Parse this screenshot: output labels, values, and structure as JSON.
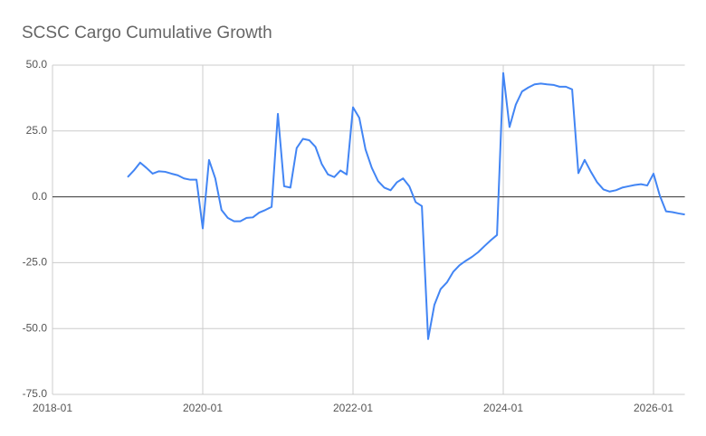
{
  "chart_data": {
    "type": "line",
    "title": "SCSC Cargo Cumulative Growth",
    "x": [
      "2019-01",
      "2019-02",
      "2019-03",
      "2019-04",
      "2019-05",
      "2019-06",
      "2019-07",
      "2019-08",
      "2019-09",
      "2019-10",
      "2019-11",
      "2019-12",
      "2020-01",
      "2020-02",
      "2020-03",
      "2020-04",
      "2020-05",
      "2020-06",
      "2020-07",
      "2020-08",
      "2020-09",
      "2020-10",
      "2020-11",
      "2020-12",
      "2021-01",
      "2021-02",
      "2021-03",
      "2021-04",
      "2021-05",
      "2021-06",
      "2021-07",
      "2021-08",
      "2021-09",
      "2021-10",
      "2021-11",
      "2021-12",
      "2022-01",
      "2022-02",
      "2022-03",
      "2022-04",
      "2022-05",
      "2022-06",
      "2022-07",
      "2022-08",
      "2022-09",
      "2022-10",
      "2022-11",
      "2022-12",
      "2023-01",
      "2023-02",
      "2023-03",
      "2023-04",
      "2023-05",
      "2023-06",
      "2023-07",
      "2023-08",
      "2023-09",
      "2023-10",
      "2023-11",
      "2023-12",
      "2024-01",
      "2024-02",
      "2024-03",
      "2024-04",
      "2024-05",
      "2024-06",
      "2024-07",
      "2024-08",
      "2024-09",
      "2024-10",
      "2024-11",
      "2024-12",
      "2025-01",
      "2025-02",
      "2025-03",
      "2025-04",
      "2025-05",
      "2025-06",
      "2025-07",
      "2025-08",
      "2025-09",
      "2025-10",
      "2025-11",
      "2025-12",
      "2026-01",
      "2026-02",
      "2026-03",
      "2026-04",
      "2026-05",
      "2026-06"
    ],
    "values": [
      7.5,
      10,
      13,
      11,
      8.8,
      9.7,
      9.5,
      8.8,
      8.2,
      7,
      6.5,
      6.5,
      -12,
      14,
      7,
      -5,
      -8,
      -9.3,
      -9.3,
      -8,
      -7.8,
      -6,
      -5,
      -3.8,
      31.5,
      4,
      3.5,
      18.5,
      22,
      21.5,
      19,
      12.5,
      8.5,
      7.5,
      10,
      8.5,
      34,
      30,
      18,
      11,
      6,
      3.5,
      2.5,
      5.5,
      7,
      4,
      -2,
      -3.5,
      -54,
      -41,
      -35,
      -32.5,
      -28.5,
      -26,
      -24.3,
      -22.8,
      -21,
      -18.7,
      -16.5,
      -14.5,
      47,
      26.5,
      35,
      40,
      41.5,
      42.7,
      43,
      42.7,
      42.5,
      41.8,
      41.8,
      40.8,
      9,
      14,
      9.5,
      5.5,
      2.8,
      2,
      2.5,
      3.5,
      4,
      4.5,
      4.8,
      4.3,
      8.8,
      0.5,
      -5.5,
      -5.8,
      -6.3,
      -6.7
    ],
    "color": "#4285f4",
    "xlim": [
      "2018-01",
      "2026-06"
    ],
    "xticks": [
      "2018-01",
      "2020-01",
      "2022-01",
      "2024-01",
      "2026-01"
    ],
    "ylim": [
      -75,
      50
    ],
    "yticks": [
      {
        "value": -75,
        "label": "-75.0"
      },
      {
        "value": -50,
        "label": "-50.0"
      },
      {
        "value": -25,
        "label": "-25.0"
      },
      {
        "value": 0,
        "label": "0.0"
      },
      {
        "value": 25,
        "label": "25.0"
      },
      {
        "value": 50,
        "label": "50.0"
      }
    ],
    "grid": true
  }
}
